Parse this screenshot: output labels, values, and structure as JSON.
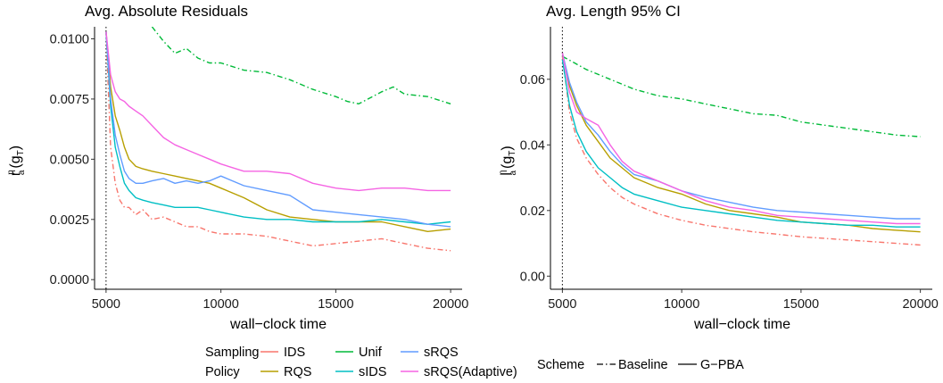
{
  "chart_data": [
    {
      "type": "line",
      "title": "Avg. Absolute Residuals",
      "xlabel": "wall−clock time",
      "ylabel_main": "r",
      "ylabel_super": "η",
      "ylabel_sub": "a",
      "ylabel_paren": "(g",
      "ylabel_paren_sub": "T",
      "ylabel_close": ")",
      "xlim": [
        4500,
        20500
      ],
      "ylim": [
        -0.0004,
        0.0105
      ],
      "xticks": [
        5000,
        10000,
        15000,
        20000
      ],
      "xtick_labels": [
        "5000",
        "10000",
        "15000",
        "20000"
      ],
      "yticks": [
        0.0,
        0.0025,
        0.005,
        0.0075,
        0.01
      ],
      "ytick_labels": [
        "0.0000",
        "0.0025",
        "0.0050",
        "0.0075",
        "0.0100"
      ],
      "vline_x": 5000,
      "grid": false,
      "series": [
        {
          "name": "IDS",
          "scheme": "Baseline",
          "color": "#F8766D",
          "x": [
            5000,
            5200,
            5400,
            5600,
            5800,
            6000,
            6300,
            6600,
            7000,
            7500,
            8000,
            8500,
            9000,
            9500,
            10000,
            11000,
            12000,
            13000,
            14000,
            15000,
            16000,
            17000,
            18000,
            19000,
            20000
          ],
          "y": [
            0.0103,
            0.0055,
            0.004,
            0.0033,
            0.003,
            0.003,
            0.0027,
            0.0029,
            0.0025,
            0.0026,
            0.0024,
            0.0022,
            0.0022,
            0.002,
            0.0019,
            0.0019,
            0.0018,
            0.0016,
            0.0014,
            0.0015,
            0.0016,
            0.0017,
            0.0015,
            0.0013,
            0.0012
          ]
        },
        {
          "name": "RQS",
          "scheme": "G-PBA",
          "color": "#B79F00",
          "x": [
            5000,
            5200,
            5400,
            5600,
            5800,
            6000,
            6300,
            6600,
            7000,
            7500,
            8000,
            8500,
            9000,
            9500,
            10000,
            11000,
            12000,
            13000,
            14000,
            15000,
            16000,
            17000,
            18000,
            19000,
            20000
          ],
          "y": [
            0.0103,
            0.008,
            0.0068,
            0.0062,
            0.0055,
            0.005,
            0.0047,
            0.0046,
            0.0045,
            0.0044,
            0.0043,
            0.0042,
            0.0041,
            0.004,
            0.0038,
            0.0034,
            0.0029,
            0.0026,
            0.0025,
            0.0024,
            0.0024,
            0.0024,
            0.0022,
            0.002,
            0.0021
          ]
        },
        {
          "name": "Unif",
          "scheme": "Baseline",
          "color": "#00BA38",
          "x": [
            7000,
            7500,
            8000,
            8500,
            9000,
            9500,
            10000,
            11000,
            12000,
            13000,
            14000,
            15000,
            15500,
            16000,
            17000,
            17500,
            18000,
            19000,
            20000
          ],
          "y": [
            0.0105,
            0.0099,
            0.0094,
            0.0096,
            0.0092,
            0.009,
            0.009,
            0.0087,
            0.0086,
            0.0083,
            0.0079,
            0.0076,
            0.0074,
            0.0073,
            0.0078,
            0.008,
            0.0077,
            0.0076,
            0.0073
          ]
        },
        {
          "name": "sIDS",
          "scheme": "G-PBA",
          "color": "#00BFC4",
          "x": [
            5000,
            5200,
            5400,
            5600,
            5800,
            6000,
            6300,
            6600,
            7000,
            7500,
            8000,
            8500,
            9000,
            9500,
            10000,
            11000,
            12000,
            13000,
            14000,
            15000,
            16000,
            17000,
            18000,
            19000,
            20000
          ],
          "y": [
            0.0103,
            0.0072,
            0.0055,
            0.0047,
            0.004,
            0.0037,
            0.0034,
            0.0033,
            0.0032,
            0.0031,
            0.003,
            0.003,
            0.003,
            0.0029,
            0.0028,
            0.0026,
            0.0025,
            0.0025,
            0.0024,
            0.0024,
            0.0024,
            0.0025,
            0.0024,
            0.0023,
            0.0024
          ]
        },
        {
          "name": "sRQS",
          "scheme": "G-PBA",
          "color": "#619CFF",
          "x": [
            5000,
            5200,
            5400,
            5600,
            5800,
            6000,
            6300,
            6600,
            7000,
            7500,
            8000,
            8500,
            9000,
            9500,
            10000,
            11000,
            12000,
            13000,
            14000,
            15000,
            16000,
            17000,
            18000,
            19000,
            20000
          ],
          "y": [
            0.0103,
            0.0075,
            0.006,
            0.0052,
            0.0045,
            0.0042,
            0.004,
            0.004,
            0.0041,
            0.0042,
            0.004,
            0.0041,
            0.004,
            0.0041,
            0.0043,
            0.0039,
            0.0037,
            0.0035,
            0.0029,
            0.0028,
            0.0027,
            0.0026,
            0.0025,
            0.0023,
            0.0022
          ]
        },
        {
          "name": "sRQS(Adaptive)",
          "scheme": "G-PBA",
          "color": "#F564E3",
          "x": [
            5000,
            5200,
            5400,
            5600,
            5800,
            6000,
            6300,
            6600,
            7000,
            7500,
            8000,
            8500,
            9000,
            9500,
            10000,
            11000,
            12000,
            13000,
            14000,
            15000,
            16000,
            17000,
            18000,
            19000,
            20000
          ],
          "y": [
            0.0103,
            0.0085,
            0.0078,
            0.0075,
            0.0074,
            0.0072,
            0.007,
            0.0068,
            0.0064,
            0.0059,
            0.0056,
            0.0054,
            0.0052,
            0.005,
            0.0048,
            0.0045,
            0.0045,
            0.0044,
            0.004,
            0.0038,
            0.0037,
            0.0038,
            0.0038,
            0.0037,
            0.0037
          ]
        }
      ]
    },
    {
      "type": "line",
      "title": "Avg. Length 95% CI",
      "xlabel": "wall−clock time",
      "ylabel_main": "l",
      "ylabel_super": "η",
      "ylabel_sub": "a",
      "ylabel_paren": "(g",
      "ylabel_paren_sub": "T",
      "ylabel_close": ")",
      "xlim": [
        4500,
        20500
      ],
      "ylim": [
        -0.004,
        0.076
      ],
      "xticks": [
        5000,
        10000,
        15000,
        20000
      ],
      "xtick_labels": [
        "5000",
        "10000",
        "15000",
        "20000"
      ],
      "yticks": [
        0.0,
        0.02,
        0.04,
        0.06
      ],
      "ytick_labels": [
        "0.00",
        "0.02",
        "0.04",
        "0.06"
      ],
      "vline_x": 5000,
      "grid": false,
      "series": [
        {
          "name": "IDS",
          "scheme": "Baseline",
          "color": "#F8766D",
          "x": [
            5000,
            5300,
            5600,
            6000,
            6500,
            7000,
            7500,
            8000,
            9000,
            10000,
            11000,
            12000,
            13000,
            14000,
            15000,
            16000,
            17000,
            18000,
            19000,
            20000
          ],
          "y": [
            0.067,
            0.05,
            0.042,
            0.036,
            0.031,
            0.027,
            0.024,
            0.022,
            0.019,
            0.017,
            0.0155,
            0.0145,
            0.0135,
            0.0128,
            0.012,
            0.0115,
            0.011,
            0.0105,
            0.01,
            0.0095
          ]
        },
        {
          "name": "RQS",
          "scheme": "G-PBA",
          "color": "#B79F00",
          "x": [
            5000,
            5300,
            5600,
            6000,
            6500,
            7000,
            7500,
            8000,
            9000,
            10000,
            11000,
            12000,
            13000,
            14000,
            15000,
            16000,
            17000,
            18000,
            19000,
            20000
          ],
          "y": [
            0.068,
            0.058,
            0.052,
            0.046,
            0.041,
            0.036,
            0.033,
            0.03,
            0.027,
            0.025,
            0.022,
            0.02,
            0.019,
            0.018,
            0.0165,
            0.016,
            0.0155,
            0.0145,
            0.014,
            0.0135
          ]
        },
        {
          "name": "Unif",
          "scheme": "Baseline",
          "color": "#00BA38",
          "x": [
            5000,
            5500,
            6000,
            7000,
            8000,
            9000,
            10000,
            11000,
            12000,
            13000,
            14000,
            15000,
            16000,
            17000,
            18000,
            19000,
            20000
          ],
          "y": [
            0.067,
            0.065,
            0.063,
            0.06,
            0.057,
            0.055,
            0.054,
            0.0525,
            0.051,
            0.0495,
            0.049,
            0.047,
            0.046,
            0.045,
            0.044,
            0.043,
            0.0425
          ]
        },
        {
          "name": "sIDS",
          "scheme": "G-PBA",
          "color": "#00BFC4",
          "x": [
            5000,
            5300,
            5600,
            6000,
            6500,
            7000,
            7500,
            8000,
            9000,
            10000,
            11000,
            12000,
            13000,
            14000,
            15000,
            16000,
            17000,
            18000,
            19000,
            20000
          ],
          "y": [
            0.066,
            0.052,
            0.044,
            0.038,
            0.033,
            0.03,
            0.027,
            0.025,
            0.023,
            0.021,
            0.02,
            0.019,
            0.018,
            0.017,
            0.0165,
            0.016,
            0.0155,
            0.0155,
            0.015,
            0.015
          ]
        },
        {
          "name": "sRQS",
          "scheme": "G-PBA",
          "color": "#619CFF",
          "x": [
            5000,
            5300,
            5600,
            6000,
            6500,
            7000,
            7500,
            8000,
            9000,
            10000,
            11000,
            12000,
            13000,
            14000,
            15000,
            16000,
            17000,
            18000,
            19000,
            20000
          ],
          "y": [
            0.068,
            0.059,
            0.053,
            0.047,
            0.043,
            0.038,
            0.034,
            0.031,
            0.029,
            0.026,
            0.024,
            0.0225,
            0.021,
            0.02,
            0.0195,
            0.019,
            0.0185,
            0.018,
            0.0175,
            0.0175
          ]
        },
        {
          "name": "sRQS(Adaptive)",
          "scheme": "G-PBA",
          "color": "#F564E3",
          "x": [
            5000,
            5300,
            5600,
            6000,
            6500,
            7000,
            7500,
            8000,
            9000,
            10000,
            11000,
            12000,
            13000,
            14000,
            15000,
            16000,
            17000,
            18000,
            19000,
            20000
          ],
          "y": [
            0.068,
            0.056,
            0.05,
            0.048,
            0.046,
            0.04,
            0.035,
            0.032,
            0.029,
            0.026,
            0.023,
            0.021,
            0.02,
            0.0185,
            0.018,
            0.0175,
            0.017,
            0.0165,
            0.016,
            0.016
          ]
        }
      ]
    }
  ],
  "legends": {
    "sampling_title_line1": "Sampling",
    "sampling_title_line2": "Policy",
    "scheme_title": "Scheme",
    "scheme_items": [
      "Baseline",
      "G−PBA"
    ]
  }
}
